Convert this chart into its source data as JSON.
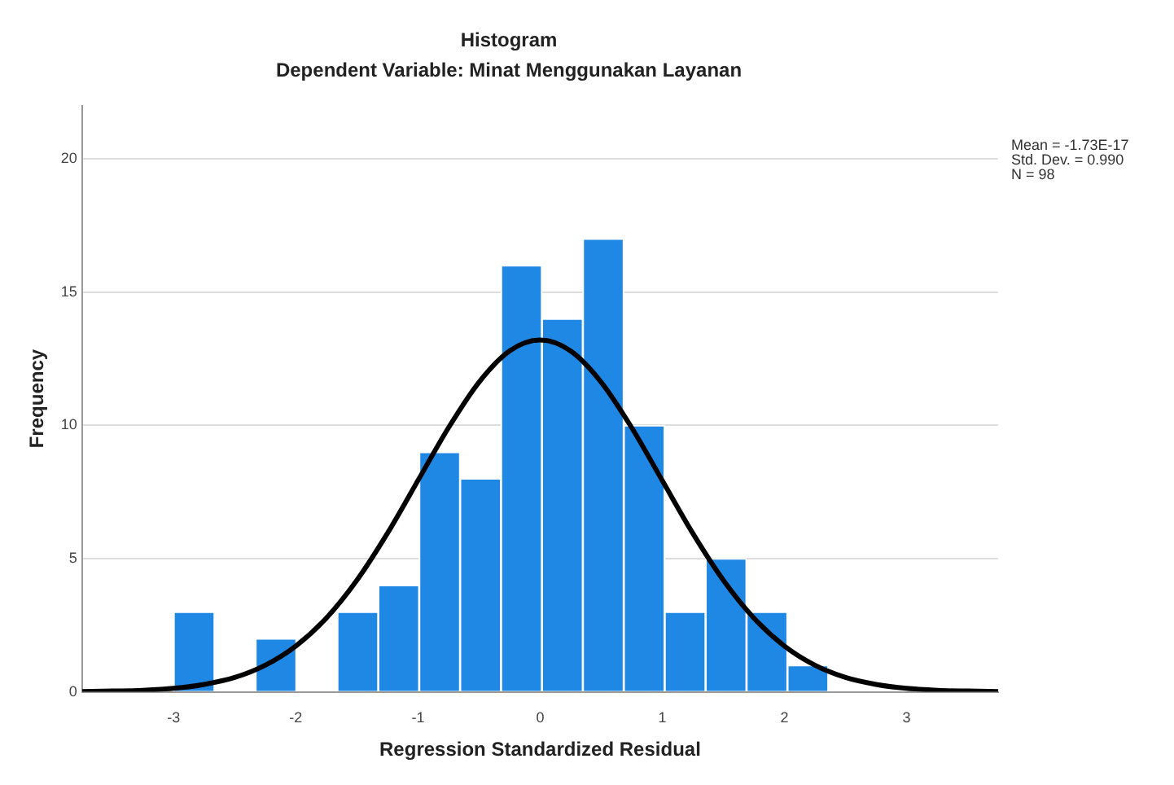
{
  "chart_data": {
    "type": "histogram",
    "title": "Histogram",
    "subtitle": "Dependent Variable: Minat Menggunakan Layanan",
    "xlabel": "Regression Standardized Residual",
    "ylabel": "Frequency",
    "bins": [
      -3.0,
      -2.665,
      -2.33,
      -1.995,
      -1.66,
      -1.325,
      -0.99,
      -0.655,
      -0.32,
      0.015,
      0.35,
      0.685,
      1.02,
      1.355,
      1.69,
      2.025,
      2.36
    ],
    "values": [
      3,
      0,
      2,
      0,
      3,
      4,
      9,
      8,
      16,
      14,
      17,
      10,
      3,
      5,
      3,
      1
    ],
    "color": "#1f88e5",
    "series": [
      {
        "type": "line",
        "color": "#000000",
        "x": [
          -3.75,
          -3.5,
          -3.25,
          -3,
          -2.75,
          -2.5,
          -2.25,
          -2,
          -1.75,
          -1.5,
          -1.25,
          -1,
          -0.75,
          -0.5,
          -0.25,
          0,
          0.25,
          0.5,
          0.75,
          1,
          1.25,
          1.5,
          1.75,
          2,
          2.25,
          2.5,
          2.75,
          3,
          3.25,
          3.5,
          3.75
        ],
        "values": [
          0.01,
          0.03,
          0.06,
          0.13,
          0.28,
          0.54,
          1.0,
          1.72,
          2.77,
          4.19,
          5.95,
          7.93,
          9.91,
          11.62,
          12.79,
          13.2,
          12.79,
          11.62,
          9.91,
          7.93,
          5.95,
          4.19,
          2.77,
          1.72,
          1.0,
          0.54,
          0.28,
          0.13,
          0.06,
          0.03,
          0.01
        ]
      }
    ],
    "xlim": [
      -3.75,
      3.75
    ],
    "xticks": [
      -3,
      -2,
      -1,
      0,
      1,
      2,
      3
    ],
    "ylim": [
      0,
      22
    ],
    "yticks": [
      0,
      5,
      10,
      15,
      20
    ],
    "grid": "y",
    "marker": "none",
    "annotations": [
      "Mean = -1.73E-17",
      "Std. Dev. = 0.990",
      "N = 98"
    ]
  }
}
